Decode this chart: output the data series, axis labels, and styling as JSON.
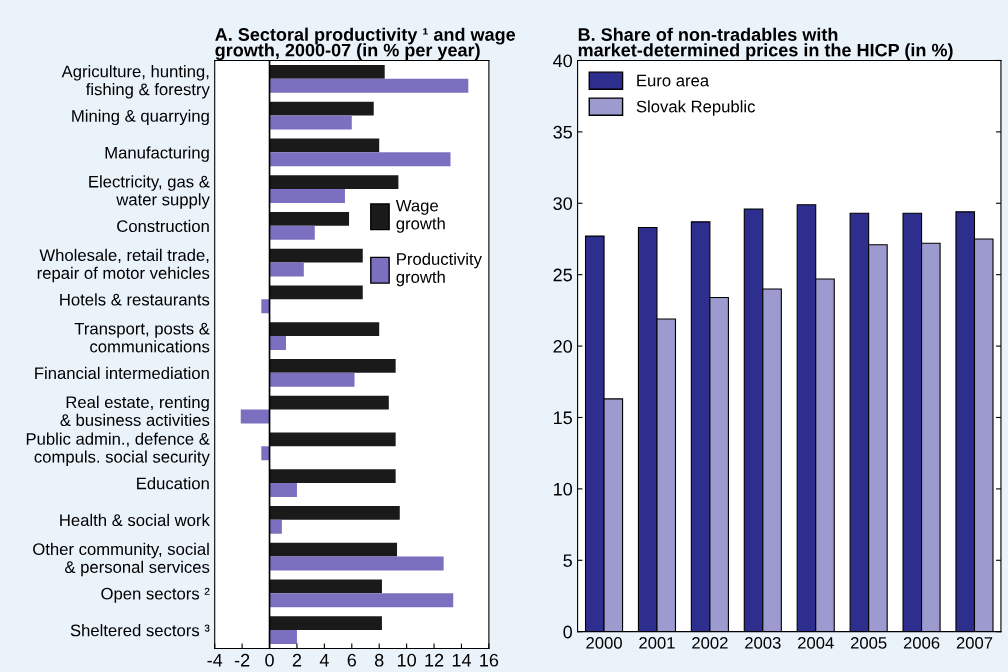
{
  "chart_data": [
    {
      "type": "bar",
      "orientation": "horizontal",
      "title": "A. Sectoral productivity ¹ and wage\ngrowth, 2000-07 (in % per year)",
      "categories": [
        "Agriculture, hunting,\nfishing & forestry",
        "Mining & quarrying",
        "Manufacturing",
        "Electricity, gas &\nwater supply",
        "Construction",
        "Wholesale, retail trade,\nrepair of motor vehicles",
        "Hotels & restaurants",
        "Transport, posts &\ncommunications",
        "Financial intermediation",
        "Real estate, renting\n& business activities",
        "Public admin., defence &\ncompuls. social security",
        "Education",
        "Health & social work",
        "Other community, social\n& personal services",
        "Open sectors ²",
        "Sheltered sectors ³"
      ],
      "series": [
        {
          "name": "Wage\ngrowth",
          "color": "#1a1a1a",
          "values": [
            8.4,
            7.6,
            8.0,
            9.4,
            5.8,
            6.8,
            6.8,
            8.0,
            9.2,
            8.7,
            9.2,
            9.2,
            9.5,
            9.3,
            8.2,
            8.2
          ]
        },
        {
          "name": "Productivity\ngrowth",
          "color": "#7b6fc0",
          "values": [
            14.5,
            6.0,
            13.2,
            5.5,
            3.3,
            2.5,
            -0.6,
            1.2,
            6.2,
            -2.1,
            -0.6,
            2.0,
            0.9,
            12.7,
            13.4,
            2.0
          ]
        }
      ],
      "xlim": [
        -4,
        16
      ],
      "xticks": [
        -4,
        -2,
        0,
        2,
        4,
        6,
        8,
        10,
        12,
        14,
        16
      ],
      "ref_lines": [
        {
          "axis": "x",
          "value": 0,
          "color": "#000000"
        }
      ],
      "legend": "right",
      "grid": false
    },
    {
      "type": "bar",
      "title": "B. Share of non-tradables with\nmarket-determined prices in the HICP (in %)",
      "categories": [
        "2000",
        "2001",
        "2002",
        "2003",
        "2004",
        "2005",
        "2006",
        "2007"
      ],
      "series": [
        {
          "name": "Euro area",
          "color": "#2e2e8f",
          "values": [
            27.7,
            28.3,
            28.7,
            29.6,
            29.9,
            29.3,
            29.3,
            29.4
          ]
        },
        {
          "name": "Slovak Republic",
          "color": "#9d9ad0",
          "values": [
            16.3,
            21.9,
            23.4,
            24.0,
            24.7,
            27.1,
            27.2,
            27.5
          ]
        }
      ],
      "ylim": [
        0,
        40
      ],
      "yticks": [
        0,
        5,
        10,
        15,
        20,
        25,
        30,
        35,
        40
      ],
      "legend": "top left",
      "grid": false
    }
  ]
}
